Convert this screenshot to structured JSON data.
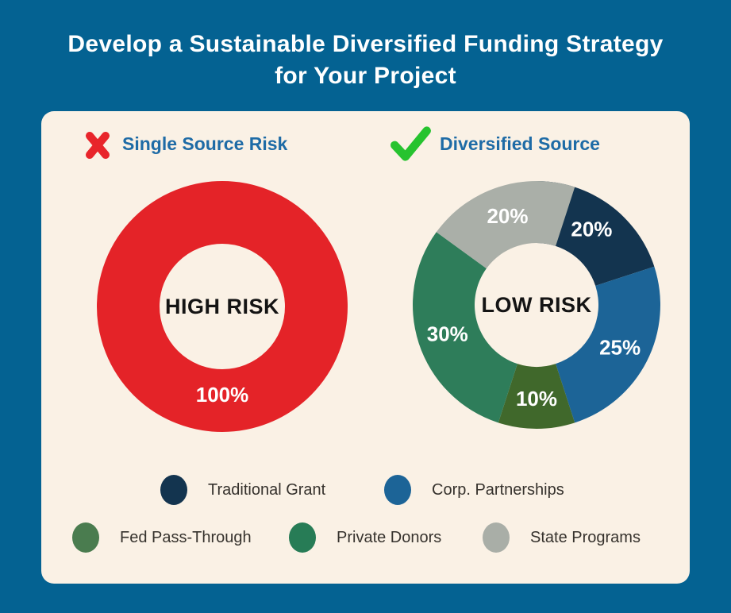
{
  "page": {
    "background_color": "#046292",
    "card_color": "#faf1e5"
  },
  "title": {
    "text": "Develop a Sustainable Diversified Funding Strategy for Your Project",
    "color": "#ffffff"
  },
  "sections": [
    {
      "icon": "x-mark",
      "icon_color": "#e8252b",
      "label": "Single Source Risk",
      "label_color": "#1e6ba6"
    },
    {
      "icon": "check-mark",
      "icon_color": "#26c32f",
      "label": "Diversified Source",
      "label_color": "#1e6ba6"
    }
  ],
  "chart_data": [
    {
      "type": "pie",
      "variant": "donut",
      "title": "Single Source Risk",
      "center_label": "HIGH RISK",
      "slices": [
        {
          "label": "Single Source",
          "value": 100,
          "display": "100%",
          "color": "#e42328"
        }
      ]
    },
    {
      "type": "pie",
      "variant": "donut",
      "title": "Diversified Source",
      "center_label": "LOW RISK",
      "slices": [
        {
          "label": "Traditional Grant",
          "value": 20,
          "display": "20%",
          "color": "#13344f"
        },
        {
          "label": "Corp. Partnerships",
          "value": 25,
          "display": "25%",
          "color": "#1c6497"
        },
        {
          "label": "Fed Pass-Through",
          "value": 10,
          "display": "10%",
          "color": "#40682b"
        },
        {
          "label": "Private Donors",
          "value": 30,
          "display": "30%",
          "color": "#2e7d5a"
        },
        {
          "label": "State Programs",
          "value": 20,
          "display": "20%",
          "color": "#aaafa8"
        }
      ]
    }
  ],
  "legend": {
    "items": [
      {
        "label": "Traditional Grant",
        "color": "#13344f"
      },
      {
        "label": "Corp. Partnerships",
        "color": "#1c6497"
      },
      {
        "label": "Fed Pass-Through",
        "color": "#4a7c4f"
      },
      {
        "label": "Private Donors",
        "color": "#277c56"
      },
      {
        "label": "State Programs",
        "color": "#a9aea7"
      }
    ]
  }
}
